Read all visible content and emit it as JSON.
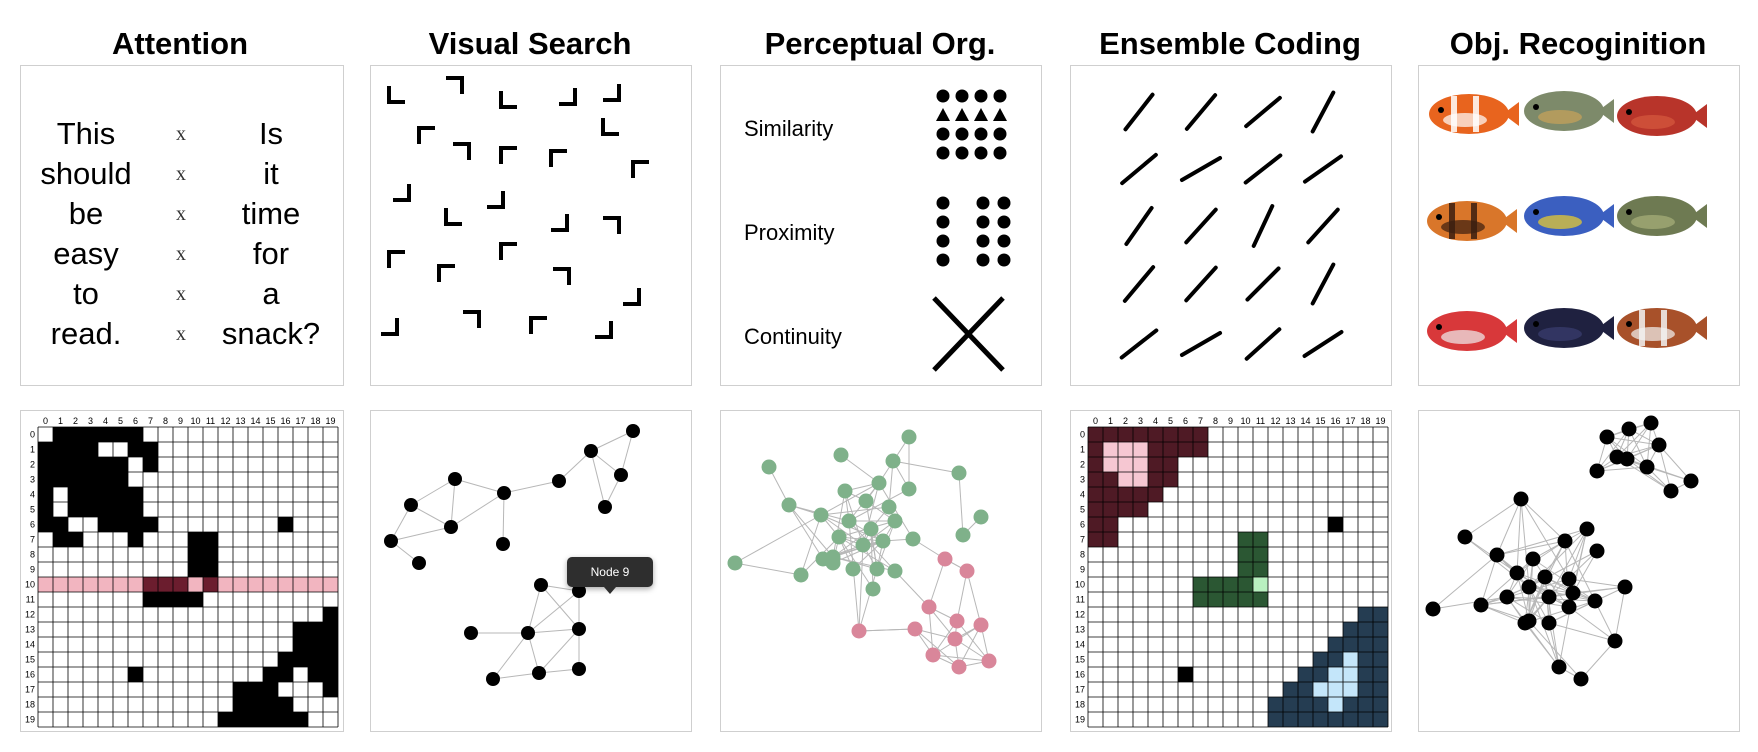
{
  "columns": [
    {
      "title": "Attention"
    },
    {
      "title": "Visual Search"
    },
    {
      "title": "Perceptual Org."
    },
    {
      "title": "Ensemble Coding"
    },
    {
      "title": "Obj. Recoginition"
    }
  ],
  "attention_text": {
    "left_words": [
      "This",
      "should",
      "be",
      "easy",
      "to",
      "read."
    ],
    "marks": [
      "x",
      "x",
      "x",
      "x",
      "x",
      "x"
    ],
    "right_words": [
      "Is",
      "it",
      "time",
      "for",
      "a",
      "snack?"
    ]
  },
  "perceptual_org_labels": [
    "Similarity",
    "Proximity",
    "Continuity"
  ],
  "matrix_tick_labels": [
    "0",
    "1",
    "2",
    "3",
    "4",
    "5",
    "6",
    "7",
    "8",
    "9",
    "10",
    "11",
    "12",
    "13",
    "14",
    "15",
    "16",
    "17",
    "18",
    "19"
  ],
  "graph_tooltip": "Node 9",
  "colors": {
    "matrix_fill": "#000000",
    "highlight_row": "#f2b5c0",
    "highlight_cell_dark": "#6b1d2e",
    "cluster_maroon": "#4f1a25",
    "cluster_maroon_light": "#f6c7d2",
    "cluster_green": "#2b5733",
    "cluster_green_light": "#b9f0c0",
    "cluster_navy": "#253d52",
    "cluster_navy_light": "#c4e6fa",
    "node_green": "#7fb18a",
    "node_pink": "#d9869a",
    "edge": "#b7b7b7"
  }
}
